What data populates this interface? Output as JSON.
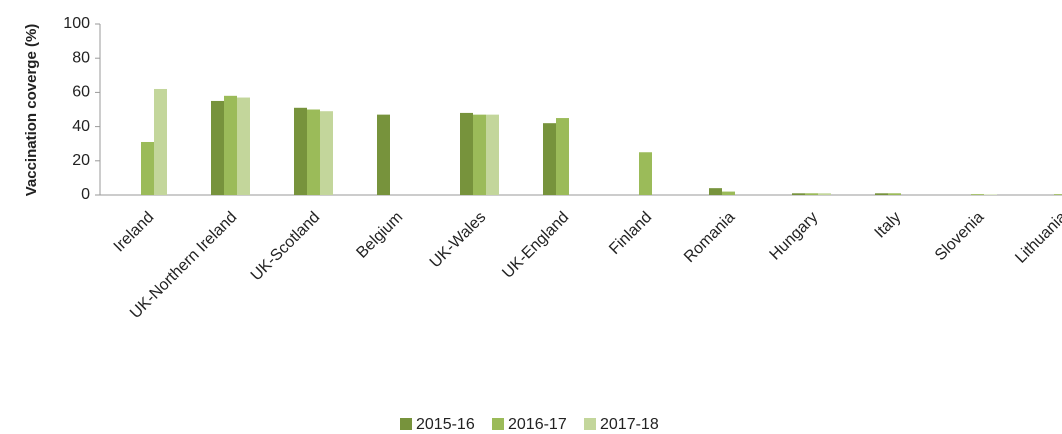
{
  "chart_data": {
    "type": "bar",
    "y_label": "Vaccination coverge (%)",
    "categories": [
      "Ireland",
      "UK-Northern Ireland",
      "UK-Scotland",
      "Belgium",
      "UK-Wales",
      "UK-England",
      "Finland",
      "Romania",
      "Hungary",
      "Italy",
      "Slovenia",
      "Lithuania"
    ],
    "series": [
      {
        "name": "2015-16",
        "color": "#77933c",
        "values": [
          null,
          55,
          51,
          47,
          48,
          42,
          null,
          4,
          1,
          1,
          null,
          null
        ]
      },
      {
        "name": "2016-17",
        "color": "#9bbb59",
        "values": [
          31,
          58,
          50,
          null,
          47,
          45,
          25,
          2,
          1,
          1,
          0.5,
          0.5
        ]
      },
      {
        "name": "2017-18",
        "color": "#c3d69b",
        "values": [
          62,
          57,
          49,
          null,
          47,
          null,
          null,
          null,
          1,
          null,
          0.3,
          1
        ]
      }
    ],
    "ylim": [
      0,
      100
    ],
    "yticks": [
      0,
      20,
      40,
      60,
      80,
      100
    ],
    "grid": false,
    "legend": "bottom"
  }
}
